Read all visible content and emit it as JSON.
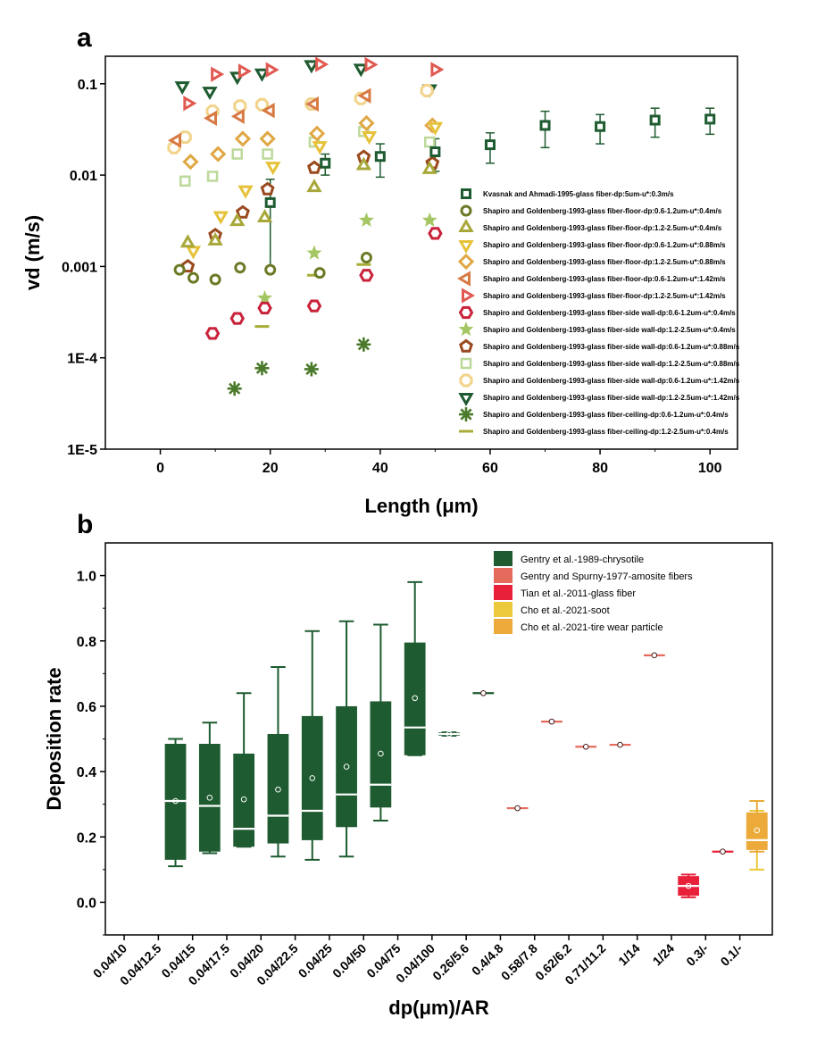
{
  "chart_data": [
    {
      "type": "scatter",
      "panel_label": "a",
      "xlabel": "Length (μm)",
      "ylabel": "vd (m/s)",
      "xlim": [
        -10,
        105
      ],
      "ylim": [
        1e-05,
        0.2
      ],
      "yscale": "log",
      "x_ticks": [
        0,
        20,
        40,
        60,
        80,
        100
      ],
      "x_tick_labels": [
        "0",
        "20",
        "40",
        "60",
        "80",
        "100"
      ],
      "y_ticks": [
        1e-05,
        0.0001,
        0.001,
        0.01,
        0.1
      ],
      "y_tick_labels": [
        "1E-5",
        "1E-4",
        "0.001",
        "0.01",
        "0.1"
      ],
      "legend_position": "bottom-right",
      "series": [
        {
          "name": "Kvasnak and Ahmadi-1995-glass fiber-dp:5um-u*:0.3m/s",
          "marker": "square",
          "color": "#1e5b30",
          "points": [
            [
              20,
              0.005
            ],
            [
              30,
              0.0135
            ],
            [
              40,
              0.016
            ],
            [
              50,
              0.018
            ],
            [
              60,
              0.0215
            ],
            [
              70,
              0.035
            ],
            [
              80,
              0.034
            ],
            [
              90,
              0.04
            ],
            [
              100,
              0.041
            ]
          ],
          "err_low": [
            0.001,
            0.01,
            0.0095,
            0.011,
            0.0135,
            0.02,
            0.022,
            0.026,
            0.028
          ],
          "err_high": [
            0.009,
            0.017,
            0.022,
            0.025,
            0.029,
            0.05,
            0.046,
            0.054,
            0.054
          ]
        },
        {
          "name": "Shapiro and Goldenberg-1993-glass fiber-floor-dp:0.6-1.2um-u*:0.4m/s",
          "marker": "circle",
          "color": "#6b7a25",
          "points": [
            [
              3.5,
              0.00092
            ],
            [
              6,
              0.00075
            ],
            [
              10,
              0.00072
            ],
            [
              14.5,
              0.00097
            ],
            [
              20,
              0.00092
            ],
            [
              29,
              0.00085
            ],
            [
              37.5,
              0.00125
            ]
          ]
        },
        {
          "name": "Shapiro and Goldenberg-1993-glass fiber-floor-dp:1.2-2.5um-u*:0.4m/s",
          "marker": "triangle-up",
          "color": "#a8a83a",
          "points": [
            [
              5,
              0.0018
            ],
            [
              10,
              0.0019
            ],
            [
              14,
              0.0031
            ],
            [
              19,
              0.0034
            ],
            [
              28,
              0.0073
            ],
            [
              37,
              0.0127
            ],
            [
              49,
              0.0115
            ]
          ]
        },
        {
          "name": "Shapiro and Goldenberg-1993-glass fiber-floor-dp:0.6-1.2um-u*:0.88m/s",
          "marker": "triangle-down",
          "color": "#e6c23a",
          "points": [
            [
              6,
              0.0015
            ],
            [
              11,
              0.0036
            ],
            [
              15.5,
              0.0069
            ],
            [
              20.5,
              0.0125
            ],
            [
              29,
              0.021
            ],
            [
              38,
              0.027
            ],
            [
              50,
              0.034
            ]
          ]
        },
        {
          "name": "Shapiro and Goldenberg-1993-glass fiber-floor-dp:1.2-2.5um-u*:0.88m/s",
          "marker": "diamond",
          "color": "#e0a845",
          "points": [
            [
              5.5,
              0.014
            ],
            [
              10.5,
              0.017
            ],
            [
              15,
              0.025
            ],
            [
              19.5,
              0.025
            ],
            [
              28.5,
              0.0285
            ],
            [
              37.5,
              0.037
            ],
            [
              49.5,
              0.035
            ]
          ]
        },
        {
          "name": "Shapiro and Goldenberg-1993-glass fiber-floor-dp:0.6-1.2um-u*:1.42m/s",
          "marker": "triangle-left",
          "color": "#d77a44",
          "points": [
            [
              3,
              0.024
            ],
            [
              9.5,
              0.042
            ],
            [
              14.5,
              0.044
            ],
            [
              20,
              0.051
            ],
            [
              28,
              0.06
            ],
            [
              37.5,
              0.074
            ]
          ]
        },
        {
          "name": "Shapiro and Goldenberg-1993-glass fiber-floor-dp:1.2-2.5um-u*:1.42m/s",
          "marker": "triangle-right",
          "color": "#e05a52",
          "points": [
            [
              5,
              0.061
            ],
            [
              10,
              0.127
            ],
            [
              15,
              0.137
            ],
            [
              20,
              0.142
            ],
            [
              29,
              0.163
            ],
            [
              38,
              0.162
            ],
            [
              50,
              0.143
            ]
          ]
        },
        {
          "name": "Shapiro and Goldenberg-1993-glass fiber-side wall-dp:0.6-1.2um-u*:0.4m/s",
          "marker": "hexagon",
          "color": "#c8233a",
          "points": [
            [
              9.5,
              0.000185
            ],
            [
              14,
              0.00027
            ],
            [
              19,
              0.00035
            ],
            [
              28,
              0.00037
            ],
            [
              37.5,
              0.0008
            ],
            [
              50,
              0.0023
            ]
          ]
        },
        {
          "name": "Shapiro and Goldenberg-1993-glass fiber-side wall-dp:1.2-2.5um-u*:0.4m/s",
          "marker": "star",
          "color": "#a4c763",
          "points": [
            [
              19,
              0.00045
            ],
            [
              28,
              0.0014
            ],
            [
              37.5,
              0.0032
            ],
            [
              49,
              0.0032
            ]
          ]
        },
        {
          "name": "Shapiro and Goldenberg-1993-glass fiber-side wall-dp:0.6-1.2um-u*:0.88m/s",
          "marker": "pentagon",
          "color": "#9a4a1e",
          "points": [
            [
              5,
              0.001
            ],
            [
              10,
              0.0022
            ],
            [
              15,
              0.0039
            ],
            [
              19.5,
              0.007
            ],
            [
              28,
              0.012
            ],
            [
              37,
              0.0158
            ],
            [
              49.5,
              0.0135
            ]
          ]
        },
        {
          "name": "Shapiro and Goldenberg-1993-glass fiber-side wall-dp:1.2-2.5um-u*:0.88m/s",
          "marker": "square-outline",
          "color": "#bcd99a",
          "points": [
            [
              4.5,
              0.0086
            ],
            [
              9.5,
              0.0097
            ],
            [
              14,
              0.017
            ],
            [
              19.5,
              0.017
            ],
            [
              28,
              0.023
            ],
            [
              37,
              0.03
            ],
            [
              49,
              0.023
            ]
          ]
        },
        {
          "name": "Shapiro and Goldenberg-1993-glass fiber-side wall-dp:0.6-1.2um-u*:1.42m/s",
          "marker": "octagon",
          "color": "#f2d38a",
          "points": [
            [
              2.5,
              0.02
            ],
            [
              4.5,
              0.026
            ],
            [
              9.5,
              0.05
            ],
            [
              14.5,
              0.057
            ],
            [
              18.5,
              0.059
            ],
            [
              27.5,
              0.06
            ],
            [
              36.5,
              0.069
            ],
            [
              48.5,
              0.084
            ]
          ]
        },
        {
          "name": "Shapiro and Goldenberg-1993-glass fiber-side wall-dp:1.2-2.5um-u*:1.42m/s",
          "marker": "triangle-down",
          "color": "#1e5b30",
          "points": [
            [
              4,
              0.095
            ],
            [
              9,
              0.083
            ],
            [
              14,
              0.121
            ],
            [
              18.5,
              0.131
            ],
            [
              27.5,
              0.162
            ],
            [
              36.5,
              0.148
            ],
            [
              49,
              0.088
            ]
          ]
        },
        {
          "name": "Shapiro and Goldenberg-1993-glass fiber-ceiling-dp:0.6-1.2um-u*:0.4m/s",
          "marker": "asterisk",
          "color": "#4a7a2a",
          "points": [
            [
              13.5,
              4.6e-05
            ],
            [
              18.5,
              7.7e-05
            ],
            [
              27.5,
              7.5e-05
            ],
            [
              37,
              0.00014
            ]
          ]
        },
        {
          "name": "Shapiro and Goldenberg-1993-glass fiber-ceiling-dp:1.2-2.5um-u*:0.4m/s",
          "marker": "dash",
          "color": "#a8ad38",
          "points": [
            [
              18.5,
              0.00022
            ],
            [
              28,
              0.0008
            ],
            [
              37,
              0.00105
            ]
          ]
        }
      ]
    },
    {
      "type": "box",
      "panel_label": "b",
      "xlabel": "dp(μm)/AR",
      "ylabel": "Deposition rate",
      "ylim": [
        -0.1,
        1.1
      ],
      "y_ticks": [
        0.0,
        0.2,
        0.4,
        0.6,
        0.8,
        1.0
      ],
      "y_tick_labels": [
        "0.0",
        "0.2",
        "0.4",
        "0.6",
        "0.8",
        "1.0"
      ],
      "categories": [
        "0.04/10",
        "0.04/12.5",
        "0.04/15",
        "0.04/17.5",
        "0.04/20",
        "0.04/22.5",
        "0.04/25",
        "0.04/50",
        "0.04/75",
        "0.04/100",
        "0.26/5.6",
        "0.4/4.8",
        "0.58/7.8",
        "0.62/6.2",
        "0.71/11.2",
        "1/14",
        "1/24",
        "0.3/-",
        "0.1/-"
      ],
      "legend_position": "top-right",
      "legend": [
        {
          "name": "Gentry et al.-1989-chrysotile",
          "color": "#1e5b30"
        },
        {
          "name": "Gentry and Spurny-1977-amosite fibers",
          "color": "#e46a5c"
        },
        {
          "name": "Tian et al.-2011-glass fiber",
          "color": "#e8203a"
        },
        {
          "name": "Cho et al.-2021-soot",
          "color": "#ebc93a"
        },
        {
          "name": "Cho et al.-2021-tire wear particle",
          "color": "#ebaa3a"
        }
      ],
      "boxes": [
        {
          "category": "0.04/12.5",
          "series": "Gentry et al.-1989-chrysotile",
          "min": 0.11,
          "q1": 0.13,
          "median": 0.31,
          "mean": 0.31,
          "q3": 0.485,
          "max": 0.5
        },
        {
          "category": "0.04/15",
          "series": "Gentry et al.-1989-chrysotile",
          "min": 0.15,
          "q1": 0.155,
          "median": 0.295,
          "mean": 0.32,
          "q3": 0.485,
          "max": 0.55
        },
        {
          "category": "0.04/17.5",
          "series": "Gentry et al.-1989-chrysotile",
          "min": 0.17,
          "q1": 0.17,
          "median": 0.225,
          "mean": 0.315,
          "q3": 0.455,
          "max": 0.64
        },
        {
          "category": "0.04/20",
          "series": "Gentry et al.-1989-chrysotile",
          "min": 0.14,
          "q1": 0.18,
          "median": 0.265,
          "mean": 0.345,
          "q3": 0.515,
          "max": 0.72
        },
        {
          "category": "0.04/22.5",
          "series": "Gentry et al.-1989-chrysotile",
          "min": 0.13,
          "q1": 0.19,
          "median": 0.28,
          "mean": 0.38,
          "q3": 0.57,
          "max": 0.83
        },
        {
          "category": "0.04/25",
          "series": "Gentry et al.-1989-chrysotile",
          "min": 0.14,
          "q1": 0.23,
          "median": 0.33,
          "mean": 0.415,
          "q3": 0.6,
          "max": 0.86
        },
        {
          "category": "0.04/50",
          "series": "Gentry et al.-1989-chrysotile",
          "min": 0.25,
          "q1": 0.29,
          "median": 0.36,
          "mean": 0.455,
          "q3": 0.615,
          "max": 0.85
        },
        {
          "category": "0.04/75",
          "series": "Gentry et al.-1989-chrysotile",
          "min": 0.45,
          "q1": 0.45,
          "median": 0.535,
          "mean": 0.625,
          "q3": 0.795,
          "max": 0.98
        },
        {
          "category": "0.04/100",
          "series": "Gentry et al.-1989-chrysotile",
          "min": 0.51,
          "q1": 0.51,
          "median": 0.515,
          "mean": 0.515,
          "q3": 0.52,
          "max": 0.52
        },
        {
          "category": "0.26/5.6",
          "series": "Gentry et al.-1989-chrysotile",
          "min": 0.64,
          "q1": 0.64,
          "median": 0.64,
          "mean": 0.64,
          "q3": 0.64,
          "max": 0.64
        },
        {
          "category": "0.4/4.8",
          "series": "Gentry and Spurny-1977-amosite fibers",
          "min": 0.288,
          "q1": 0.288,
          "median": 0.288,
          "mean": 0.288,
          "q3": 0.288,
          "max": 0.288
        },
        {
          "category": "0.58/7.8",
          "series": "Gentry and Spurny-1977-amosite fibers",
          "min": 0.553,
          "q1": 0.553,
          "median": 0.553,
          "mean": 0.553,
          "q3": 0.553,
          "max": 0.553
        },
        {
          "category": "0.62/6.2",
          "series": "Gentry and Spurny-1977-amosite fibers",
          "min": 0.476,
          "q1": 0.476,
          "median": 0.476,
          "mean": 0.476,
          "q3": 0.476,
          "max": 0.476
        },
        {
          "category": "0.71/11.2",
          "series": "Gentry and Spurny-1977-amosite fibers",
          "min": 0.482,
          "q1": 0.482,
          "median": 0.482,
          "mean": 0.482,
          "q3": 0.482,
          "max": 0.482
        },
        {
          "category": "1/14",
          "series": "Gentry and Spurny-1977-amosite fibers",
          "min": 0.756,
          "q1": 0.756,
          "median": 0.756,
          "mean": 0.756,
          "q3": 0.756,
          "max": 0.756
        },
        {
          "category": "1/24",
          "series": "Tian et al.-2011-glass fiber",
          "min": 0.015,
          "q1": 0.02,
          "median": 0.05,
          "mean": 0.05,
          "q3": 0.08,
          "max": 0.085
        },
        {
          "category": "0.3/-",
          "series": "Tian et al.-2011-glass fiber",
          "min": 0.155,
          "q1": 0.155,
          "median": 0.155,
          "mean": 0.155,
          "q3": 0.155,
          "max": 0.155
        },
        {
          "category": "0.1/-",
          "series": "Cho et al.-2021-soot",
          "min": 0.1,
          "q1": 0.17,
          "median": 0.17,
          "mean": 0.195,
          "q3": 0.245,
          "max": 0.28
        },
        {
          "category": "0.1/-",
          "series": "Cho et al.-2021-tire wear particle",
          "min": 0.155,
          "q1": 0.16,
          "median": 0.19,
          "mean": 0.22,
          "q3": 0.275,
          "max": 0.31
        }
      ]
    }
  ]
}
